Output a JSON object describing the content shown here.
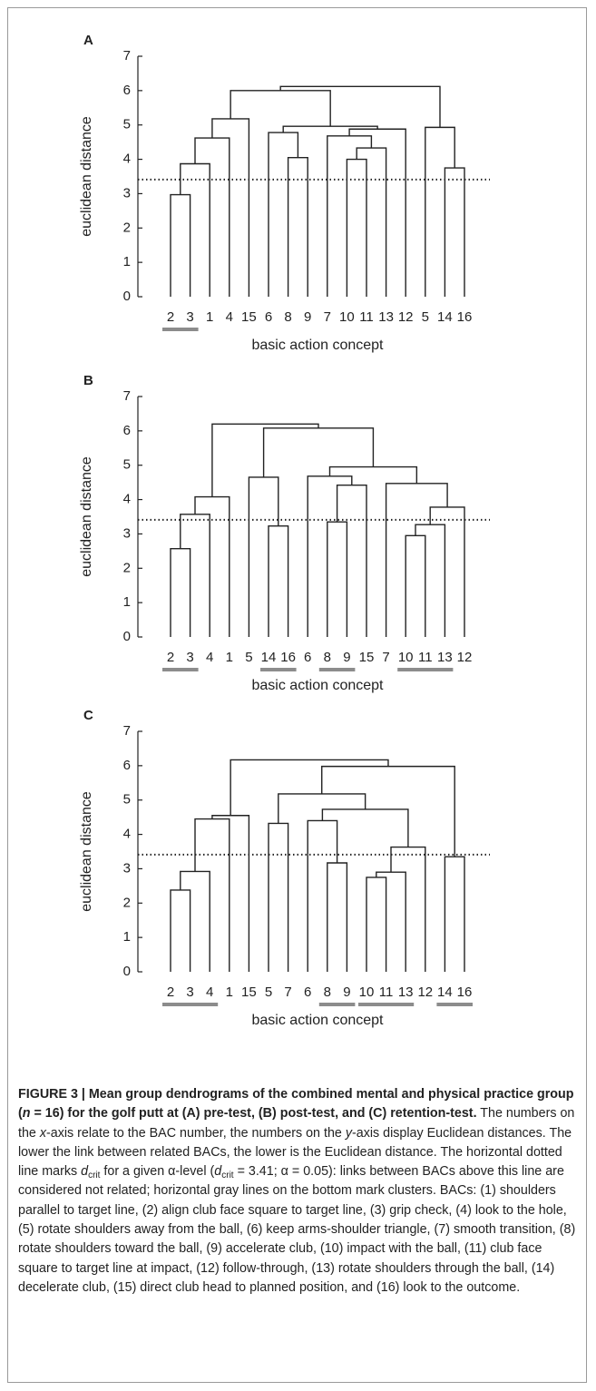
{
  "chart_data": [
    {
      "type": "dendrogram",
      "panel_label": "A",
      "ylabel": "euclidean distance",
      "xlabel": "basic action concept",
      "leaves": [
        "2",
        "3",
        "1",
        "4",
        "15",
        "6",
        "8",
        "9",
        "7",
        "10",
        "11",
        "13",
        "12",
        "5",
        "14",
        "16"
      ],
      "links": [
        [
          0,
          1,
          2.97
        ],
        [
          16,
          2,
          3.87
        ],
        [
          17,
          3,
          4.62
        ],
        [
          18,
          4,
          5.18
        ],
        [
          6,
          7,
          4.05
        ],
        [
          5,
          20,
          4.78
        ],
        [
          9,
          10,
          4.0
        ],
        [
          22,
          11,
          4.33
        ],
        [
          8,
          23,
          4.68
        ],
        [
          24,
          12,
          4.88
        ],
        [
          21,
          25,
          4.96
        ],
        [
          19,
          26,
          6.0
        ],
        [
          14,
          15,
          3.75
        ],
        [
          13,
          28,
          4.93
        ],
        [
          27,
          29,
          6.12
        ]
      ],
      "ylim": [
        0,
        7
      ],
      "yticks": [
        0,
        1,
        2,
        3,
        4,
        5,
        6,
        7
      ],
      "threshold": 3.41,
      "clusters": [
        [
          0,
          1
        ]
      ]
    },
    {
      "type": "dendrogram",
      "panel_label": "B",
      "ylabel": "euclidean distance",
      "xlabel": "basic action concept",
      "leaves": [
        "2",
        "3",
        "4",
        "1",
        "5",
        "14",
        "16",
        "6",
        "8",
        "9",
        "15",
        "7",
        "10",
        "11",
        "13",
        "12"
      ],
      "links": [
        [
          0,
          1,
          2.57
        ],
        [
          16,
          2,
          3.57
        ],
        [
          17,
          3,
          4.08
        ],
        [
          5,
          6,
          3.23
        ],
        [
          4,
          19,
          4.65
        ],
        [
          8,
          9,
          3.35
        ],
        [
          21,
          10,
          4.42
        ],
        [
          7,
          22,
          4.68
        ],
        [
          12,
          13,
          2.95
        ],
        [
          24,
          14,
          3.27
        ],
        [
          25,
          15,
          3.78
        ],
        [
          11,
          26,
          4.47
        ],
        [
          23,
          27,
          4.95
        ],
        [
          20,
          28,
          6.08
        ],
        [
          18,
          29,
          6.2
        ]
      ],
      "ylim": [
        0,
        7
      ],
      "yticks": [
        0,
        1,
        2,
        3,
        4,
        5,
        6,
        7
      ],
      "threshold": 3.41,
      "clusters": [
        [
          0,
          1
        ],
        [
          5,
          6
        ],
        [
          8,
          9
        ],
        [
          12,
          14
        ]
      ]
    },
    {
      "type": "dendrogram",
      "panel_label": "C",
      "ylabel": "euclidean distance",
      "xlabel": "basic action concept",
      "leaves": [
        "2",
        "3",
        "4",
        "1",
        "15",
        "5",
        "7",
        "6",
        "8",
        "9",
        "10",
        "11",
        "13",
        "12",
        "14",
        "16"
      ],
      "links": [
        [
          0,
          1,
          2.38
        ],
        [
          16,
          2,
          2.92
        ],
        [
          17,
          3,
          4.45
        ],
        [
          18,
          4,
          4.55
        ],
        [
          5,
          6,
          4.32
        ],
        [
          8,
          9,
          3.17
        ],
        [
          7,
          21,
          4.4
        ],
        [
          10,
          11,
          2.75
        ],
        [
          23,
          12,
          2.9
        ],
        [
          24,
          13,
          3.63
        ],
        [
          22,
          25,
          4.73
        ],
        [
          20,
          26,
          5.18
        ],
        [
          14,
          15,
          3.35
        ],
        [
          27,
          28,
          5.98
        ],
        [
          19,
          29,
          6.17
        ]
      ],
      "ylim": [
        0,
        7
      ],
      "yticks": [
        0,
        1,
        2,
        3,
        4,
        5,
        6,
        7
      ],
      "threshold": 3.41,
      "clusters": [
        [
          0,
          2
        ],
        [
          8,
          9
        ],
        [
          10,
          12
        ],
        [
          14,
          15
        ]
      ]
    }
  ],
  "caption": {
    "runs": [
      {
        "text": "FIGURE 3 | Mean group dendrograms of the combined mental and physical practice group (",
        "bold": true
      },
      {
        "text": "n",
        "bold": true,
        "italic": true
      },
      {
        "text": " = 16) for the golf putt at (A) pre-test, (B) post-test, and (C) retention-test.",
        "bold": true
      },
      {
        "text": " The numbers on the "
      },
      {
        "text": "x",
        "italic": true
      },
      {
        "text": "-axis relate to the BAC number, the numbers on the "
      },
      {
        "text": "y",
        "italic": true
      },
      {
        "text": "-axis display Euclidean distances. The lower the link between related BACs, the lower is the Euclidean distance. The horizontal dotted line marks "
      },
      {
        "text": "d",
        "italic": true
      },
      {
        "text": "crit",
        "sub": true
      },
      {
        "text": " for a given α-level ("
      },
      {
        "text": "d",
        "italic": true
      },
      {
        "text": "crit",
        "sub": true
      },
      {
        "text": " = 3.41; α = 0.05): links between BACs above this line are considered not related; horizontal gray lines on the bottom mark clusters. BACs: (1) shoulders parallel to target line, (2) align club face square to target line, (3) grip check, (4) look to the hole, (5) rotate shoulders away from the ball, (6) keep arms-shoulder triangle, (7) smooth transition, (8) rotate shoulders toward the ball, (9) accelerate club, (10) impact with the ball, (11) club face square to target line at impact, (12) follow-through, (13) rotate shoulders through the ball, (14) decelerate club, (15) direct club head to planned position, and (16) look to the outcome."
      }
    ]
  }
}
